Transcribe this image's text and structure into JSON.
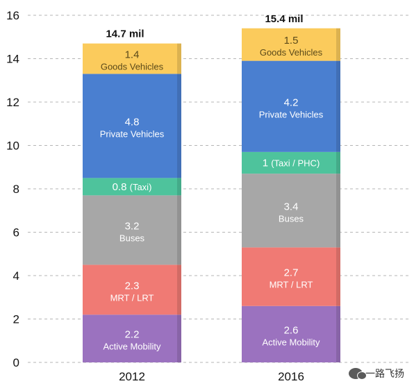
{
  "chart_data": {
    "type": "bar",
    "stacked": true,
    "title": "",
    "xlabel": "",
    "ylabel": "",
    "ylim": [
      0,
      16
    ],
    "yticks": [
      0,
      2,
      4,
      6,
      8,
      10,
      12,
      14,
      16
    ],
    "grid": true,
    "categories": [
      "2012",
      "2016"
    ],
    "totals": [
      "14.7 mil",
      "15.4 mil"
    ],
    "series": [
      {
        "name": "Active Mobility",
        "color": "#9b72bf",
        "values": [
          2.2,
          2.6
        ],
        "labels": [
          "2.2",
          "2.6"
        ]
      },
      {
        "name": "MRT / LRT",
        "color": "#f07a74",
        "values": [
          2.3,
          2.7
        ],
        "labels": [
          "2.3",
          "2.7"
        ]
      },
      {
        "name": "Buses",
        "color": "#a7a7a7",
        "values": [
          3.2,
          3.4
        ],
        "labels": [
          "3.2",
          "3.4"
        ]
      },
      {
        "name_by_category": [
          "(Taxi)",
          "(Taxi / PHC)"
        ],
        "color": "#4ec39c",
        "values": [
          0.8,
          1.0
        ],
        "labels": [
          "0.8",
          "1"
        ]
      },
      {
        "name": "Private Vehicles",
        "color": "#4a7fd0",
        "values": [
          4.8,
          4.2
        ],
        "labels": [
          "4.8",
          "4.2"
        ]
      },
      {
        "name": "Goods Vehicles",
        "color": "#fbcb5c",
        "values": [
          1.4,
          1.5
        ],
        "labels": [
          "1.4",
          "1.5"
        ]
      }
    ]
  },
  "watermark": {
    "text": "一路飞扬",
    "icon": "wechat-icon"
  }
}
